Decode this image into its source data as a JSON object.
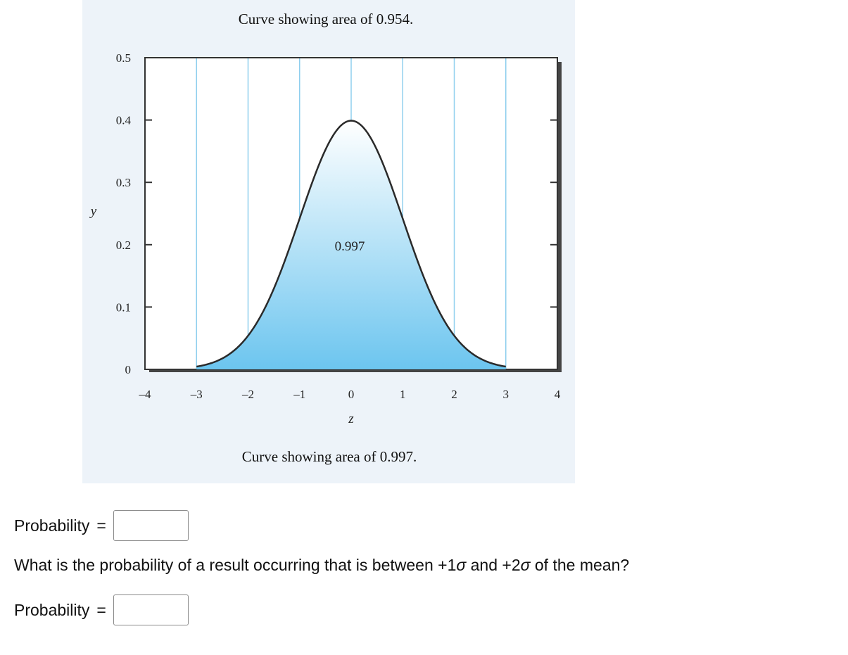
{
  "chart_data": {
    "type": "area",
    "title": "Curve showing area of 0.954.",
    "subtitle": "Curve showing area of 0.997.",
    "xlabel": "z",
    "ylabel": "y",
    "xlim": [
      -4,
      4
    ],
    "ylim": [
      0,
      0.5
    ],
    "x_ticks": [
      -4,
      -3,
      -2,
      -1,
      0,
      1,
      2,
      3,
      4
    ],
    "x_tick_labels": [
      "–4",
      "–3",
      "–2",
      "–1",
      "0",
      "1",
      "2",
      "3",
      "4"
    ],
    "y_ticks": [
      0,
      0.1,
      0.2,
      0.3,
      0.4,
      0.5
    ],
    "y_tick_labels": [
      "0",
      "0.1",
      "0.2",
      "0.3",
      "0.4",
      "0.5"
    ],
    "series": [
      {
        "values_x": [
          -3.0,
          -2.75,
          -2.5,
          -2.25,
          -2.0,
          -1.75,
          -1.5,
          -1.25,
          -1.0,
          -0.75,
          -0.5,
          -0.25,
          0.0,
          0.25,
          0.5,
          0.75,
          1.0,
          1.25,
          1.5,
          1.75,
          2.0,
          2.25,
          2.5,
          2.75,
          3.0
        ],
        "values_y": [
          0.0044,
          0.0091,
          0.0175,
          0.0317,
          0.054,
          0.0863,
          0.1295,
          0.1826,
          0.242,
          0.3011,
          0.3521,
          0.3867,
          0.3989,
          0.3867,
          0.3521,
          0.3011,
          0.242,
          0.1826,
          0.1295,
          0.0863,
          0.054,
          0.0317,
          0.0175,
          0.0091,
          0.0044
        ]
      }
    ],
    "shaded_range": [
      -3,
      3
    ],
    "annotation": "0.997",
    "vertical_gridlines": [
      -3,
      -2,
      -1,
      0,
      1,
      2,
      3
    ],
    "colors": {
      "fill_bottom": "#6cc5ef",
      "fill_top": "#ffffff",
      "gridline": "#8fcfee",
      "curve": "#2a2a2a"
    }
  },
  "questions": [
    {
      "label": "Probability",
      "equals": "=",
      "value": ""
    },
    {
      "label": "Probability",
      "equals": "=",
      "value": ""
    }
  ],
  "question_text_parts": [
    "What is the probability of a result occurring that is between +1",
    "σ",
    " and +2",
    "σ",
    " of the mean?"
  ]
}
